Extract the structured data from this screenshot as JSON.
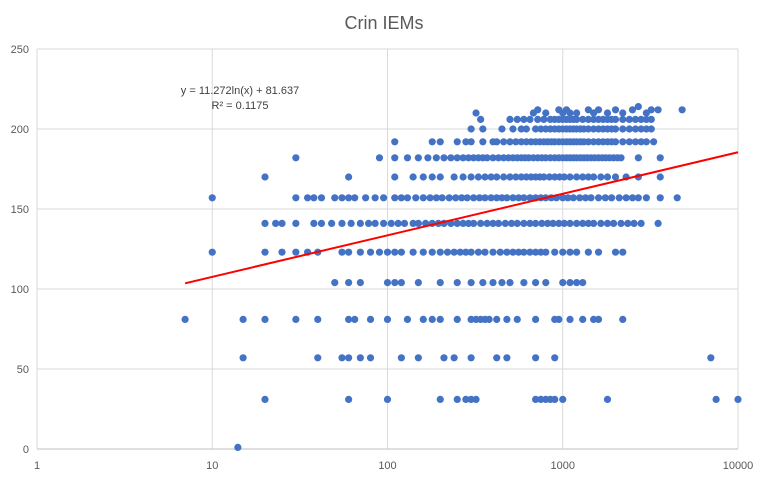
{
  "chart_data": {
    "type": "scatter",
    "title": "Crin IEMs",
    "x_scale": "log",
    "xlim": [
      1,
      10000
    ],
    "ylim": [
      0,
      250
    ],
    "x_ticks": [
      "1",
      "10",
      "100",
      "1000",
      "10000"
    ],
    "y_ticks": [
      "0",
      "50",
      "100",
      "150",
      "200",
      "250"
    ],
    "grid": true,
    "marker_color": "#4472C4",
    "trendline": {
      "equation_label": "y = 11.272ln(x) + 81.637",
      "r2_label": "R² = 0.1175",
      "a": 11.272,
      "b": 81.637,
      "x_range": [
        7,
        10000
      ],
      "color": "#FF0000"
    },
    "points": [
      [
        14,
        1
      ],
      [
        20,
        31
      ],
      [
        60,
        31
      ],
      [
        100,
        31
      ],
      [
        200,
        31
      ],
      [
        250,
        31
      ],
      [
        280,
        31
      ],
      [
        300,
        31
      ],
      [
        320,
        31
      ],
      [
        700,
        31
      ],
      [
        750,
        31
      ],
      [
        800,
        31
      ],
      [
        850,
        31
      ],
      [
        900,
        31
      ],
      [
        1000,
        31
      ],
      [
        1800,
        31
      ],
      [
        7500,
        31
      ],
      [
        10000,
        31
      ],
      [
        15,
        57
      ],
      [
        40,
        57
      ],
      [
        55,
        57
      ],
      [
        60,
        57
      ],
      [
        70,
        57
      ],
      [
        80,
        57
      ],
      [
        120,
        57
      ],
      [
        150,
        57
      ],
      [
        210,
        57
      ],
      [
        240,
        57
      ],
      [
        300,
        57
      ],
      [
        420,
        57
      ],
      [
        480,
        57
      ],
      [
        700,
        57
      ],
      [
        900,
        57
      ],
      [
        7000,
        57
      ],
      [
        7,
        81
      ],
      [
        15,
        81
      ],
      [
        20,
        81
      ],
      [
        30,
        81
      ],
      [
        40,
        81
      ],
      [
        60,
        81
      ],
      [
        65,
        81
      ],
      [
        80,
        81
      ],
      [
        100,
        81
      ],
      [
        130,
        81
      ],
      [
        160,
        81
      ],
      [
        180,
        81
      ],
      [
        200,
        81
      ],
      [
        250,
        81
      ],
      [
        300,
        81
      ],
      [
        320,
        81
      ],
      [
        340,
        81
      ],
      [
        360,
        81
      ],
      [
        380,
        81
      ],
      [
        420,
        81
      ],
      [
        480,
        81
      ],
      [
        550,
        81
      ],
      [
        700,
        81
      ],
      [
        900,
        81
      ],
      [
        950,
        81
      ],
      [
        1100,
        81
      ],
      [
        1300,
        81
      ],
      [
        1500,
        81
      ],
      [
        1600,
        81
      ],
      [
        2200,
        81
      ],
      [
        50,
        104
      ],
      [
        60,
        104
      ],
      [
        70,
        104
      ],
      [
        100,
        104
      ],
      [
        110,
        104
      ],
      [
        120,
        104
      ],
      [
        150,
        104
      ],
      [
        200,
        104
      ],
      [
        250,
        104
      ],
      [
        300,
        104
      ],
      [
        350,
        104
      ],
      [
        400,
        104
      ],
      [
        450,
        104
      ],
      [
        500,
        104
      ],
      [
        600,
        104
      ],
      [
        700,
        104
      ],
      [
        800,
        104
      ],
      [
        1000,
        104
      ],
      [
        1100,
        104
      ],
      [
        1200,
        104
      ],
      [
        1300,
        104
      ],
      [
        10,
        123
      ],
      [
        20,
        123
      ],
      [
        25,
        123
      ],
      [
        30,
        123
      ],
      [
        35,
        123
      ],
      [
        40,
        123
      ],
      [
        55,
        123
      ],
      [
        60,
        123
      ],
      [
        70,
        123
      ],
      [
        80,
        123
      ],
      [
        90,
        123
      ],
      [
        100,
        123
      ],
      [
        110,
        123
      ],
      [
        120,
        123
      ],
      [
        140,
        123
      ],
      [
        160,
        123
      ],
      [
        180,
        123
      ],
      [
        200,
        123
      ],
      [
        220,
        123
      ],
      [
        240,
        123
      ],
      [
        260,
        123
      ],
      [
        280,
        123
      ],
      [
        300,
        123
      ],
      [
        330,
        123
      ],
      [
        360,
        123
      ],
      [
        400,
        123
      ],
      [
        440,
        123
      ],
      [
        480,
        123
      ],
      [
        520,
        123
      ],
      [
        560,
        123
      ],
      [
        600,
        123
      ],
      [
        650,
        123
      ],
      [
        700,
        123
      ],
      [
        750,
        123
      ],
      [
        800,
        123
      ],
      [
        900,
        123
      ],
      [
        1000,
        123
      ],
      [
        1100,
        123
      ],
      [
        1200,
        123
      ],
      [
        1400,
        123
      ],
      [
        1600,
        123
      ],
      [
        2000,
        123
      ],
      [
        2200,
        123
      ],
      [
        20,
        141
      ],
      [
        23,
        141
      ],
      [
        25,
        141
      ],
      [
        30,
        141
      ],
      [
        38,
        141
      ],
      [
        42,
        141
      ],
      [
        48,
        141
      ],
      [
        55,
        141
      ],
      [
        62,
        141
      ],
      [
        70,
        141
      ],
      [
        78,
        141
      ],
      [
        85,
        141
      ],
      [
        95,
        141
      ],
      [
        105,
        141
      ],
      [
        115,
        141
      ],
      [
        125,
        141
      ],
      [
        140,
        141
      ],
      [
        150,
        141
      ],
      [
        165,
        141
      ],
      [
        180,
        141
      ],
      [
        195,
        141
      ],
      [
        210,
        141
      ],
      [
        230,
        141
      ],
      [
        250,
        141
      ],
      [
        270,
        141
      ],
      [
        290,
        141
      ],
      [
        310,
        141
      ],
      [
        340,
        141
      ],
      [
        370,
        141
      ],
      [
        400,
        141
      ],
      [
        430,
        141
      ],
      [
        470,
        141
      ],
      [
        510,
        141
      ],
      [
        550,
        141
      ],
      [
        600,
        141
      ],
      [
        650,
        141
      ],
      [
        700,
        141
      ],
      [
        760,
        141
      ],
      [
        820,
        141
      ],
      [
        880,
        141
      ],
      [
        950,
        141
      ],
      [
        1020,
        141
      ],
      [
        1100,
        141
      ],
      [
        1200,
        141
      ],
      [
        1300,
        141
      ],
      [
        1400,
        141
      ],
      [
        1500,
        141
      ],
      [
        1650,
        141
      ],
      [
        1800,
        141
      ],
      [
        1950,
        141
      ],
      [
        2150,
        141
      ],
      [
        2350,
        141
      ],
      [
        2550,
        141
      ],
      [
        2800,
        141
      ],
      [
        3500,
        141
      ],
      [
        10,
        157
      ],
      [
        30,
        157
      ],
      [
        35,
        157
      ],
      [
        38,
        157
      ],
      [
        42,
        157
      ],
      [
        50,
        157
      ],
      [
        55,
        157
      ],
      [
        60,
        157
      ],
      [
        65,
        157
      ],
      [
        75,
        157
      ],
      [
        85,
        157
      ],
      [
        95,
        157
      ],
      [
        110,
        157
      ],
      [
        120,
        157
      ],
      [
        130,
        157
      ],
      [
        145,
        157
      ],
      [
        160,
        157
      ],
      [
        175,
        157
      ],
      [
        190,
        157
      ],
      [
        205,
        157
      ],
      [
        225,
        157
      ],
      [
        245,
        157
      ],
      [
        265,
        157
      ],
      [
        285,
        157
      ],
      [
        310,
        157
      ],
      [
        335,
        157
      ],
      [
        360,
        157
      ],
      [
        390,
        157
      ],
      [
        420,
        157
      ],
      [
        450,
        157
      ],
      [
        480,
        157
      ],
      [
        520,
        157
      ],
      [
        560,
        157
      ],
      [
        600,
        157
      ],
      [
        650,
        157
      ],
      [
        700,
        157
      ],
      [
        750,
        157
      ],
      [
        800,
        157
      ],
      [
        860,
        157
      ],
      [
        920,
        157
      ],
      [
        1000,
        157
      ],
      [
        1070,
        157
      ],
      [
        1150,
        157
      ],
      [
        1250,
        157
      ],
      [
        1350,
        157
      ],
      [
        1450,
        157
      ],
      [
        1600,
        157
      ],
      [
        1750,
        157
      ],
      [
        1900,
        157
      ],
      [
        2100,
        157
      ],
      [
        2300,
        157
      ],
      [
        2500,
        157
      ],
      [
        2700,
        157
      ],
      [
        3000,
        157
      ],
      [
        3600,
        157
      ],
      [
        4500,
        157
      ],
      [
        20,
        170
      ],
      [
        60,
        170
      ],
      [
        110,
        170
      ],
      [
        140,
        170
      ],
      [
        160,
        170
      ],
      [
        180,
        170
      ],
      [
        200,
        170
      ],
      [
        240,
        170
      ],
      [
        270,
        170
      ],
      [
        300,
        170
      ],
      [
        330,
        170
      ],
      [
        360,
        170
      ],
      [
        390,
        170
      ],
      [
        420,
        170
      ],
      [
        460,
        170
      ],
      [
        500,
        170
      ],
      [
        540,
        170
      ],
      [
        580,
        170
      ],
      [
        620,
        170
      ],
      [
        660,
        170
      ],
      [
        700,
        170
      ],
      [
        740,
        170
      ],
      [
        780,
        170
      ],
      [
        840,
        170
      ],
      [
        900,
        170
      ],
      [
        960,
        170
      ],
      [
        1020,
        170
      ],
      [
        1100,
        170
      ],
      [
        1200,
        170
      ],
      [
        1300,
        170
      ],
      [
        1400,
        170
      ],
      [
        1500,
        170
      ],
      [
        1650,
        170
      ],
      [
        1800,
        170
      ],
      [
        2000,
        170
      ],
      [
        2300,
        170
      ],
      [
        2700,
        170
      ],
      [
        3600,
        170
      ],
      [
        30,
        182
      ],
      [
        90,
        182
      ],
      [
        110,
        182
      ],
      [
        130,
        182
      ],
      [
        150,
        182
      ],
      [
        170,
        182
      ],
      [
        190,
        182
      ],
      [
        210,
        182
      ],
      [
        230,
        182
      ],
      [
        250,
        182
      ],
      [
        270,
        182
      ],
      [
        290,
        182
      ],
      [
        310,
        182
      ],
      [
        330,
        182
      ],
      [
        350,
        182
      ],
      [
        370,
        182
      ],
      [
        400,
        182
      ],
      [
        430,
        182
      ],
      [
        460,
        182
      ],
      [
        490,
        182
      ],
      [
        520,
        182
      ],
      [
        550,
        182
      ],
      [
        580,
        182
      ],
      [
        610,
        182
      ],
      [
        640,
        182
      ],
      [
        680,
        182
      ],
      [
        720,
        182
      ],
      [
        760,
        182
      ],
      [
        800,
        182
      ],
      [
        850,
        182
      ],
      [
        900,
        182
      ],
      [
        950,
        182
      ],
      [
        1000,
        182
      ],
      [
        1050,
        182
      ],
      [
        1100,
        182
      ],
      [
        1150,
        182
      ],
      [
        1200,
        182
      ],
      [
        1260,
        182
      ],
      [
        1320,
        182
      ],
      [
        1380,
        182
      ],
      [
        1450,
        182
      ],
      [
        1520,
        182
      ],
      [
        1600,
        182
      ],
      [
        1680,
        182
      ],
      [
        1760,
        182
      ],
      [
        1850,
        182
      ],
      [
        1950,
        182
      ],
      [
        2050,
        182
      ],
      [
        2150,
        182
      ],
      [
        2700,
        182
      ],
      [
        3600,
        182
      ],
      [
        110,
        192
      ],
      [
        180,
        192
      ],
      [
        200,
        192
      ],
      [
        250,
        192
      ],
      [
        280,
        192
      ],
      [
        300,
        192
      ],
      [
        350,
        192
      ],
      [
        400,
        192
      ],
      [
        420,
        192
      ],
      [
        460,
        192
      ],
      [
        500,
        192
      ],
      [
        540,
        192
      ],
      [
        580,
        192
      ],
      [
        620,
        192
      ],
      [
        660,
        192
      ],
      [
        700,
        192
      ],
      [
        740,
        192
      ],
      [
        780,
        192
      ],
      [
        820,
        192
      ],
      [
        860,
        192
      ],
      [
        900,
        192
      ],
      [
        950,
        192
      ],
      [
        1000,
        192
      ],
      [
        1050,
        192
      ],
      [
        1100,
        192
      ],
      [
        1150,
        192
      ],
      [
        1200,
        192
      ],
      [
        1260,
        192
      ],
      [
        1320,
        192
      ],
      [
        1400,
        192
      ],
      [
        1500,
        192
      ],
      [
        1600,
        192
      ],
      [
        1700,
        192
      ],
      [
        1800,
        192
      ],
      [
        1900,
        192
      ],
      [
        2000,
        192
      ],
      [
        2200,
        192
      ],
      [
        2400,
        192
      ],
      [
        2600,
        192
      ],
      [
        2800,
        192
      ],
      [
        3000,
        192
      ],
      [
        3300,
        192
      ],
      [
        300,
        200
      ],
      [
        350,
        200
      ],
      [
        450,
        200
      ],
      [
        520,
        200
      ],
      [
        580,
        200
      ],
      [
        620,
        200
      ],
      [
        700,
        200
      ],
      [
        750,
        200
      ],
      [
        800,
        200
      ],
      [
        850,
        200
      ],
      [
        900,
        200
      ],
      [
        950,
        200
      ],
      [
        1000,
        200
      ],
      [
        1050,
        200
      ],
      [
        1100,
        200
      ],
      [
        1150,
        200
      ],
      [
        1200,
        200
      ],
      [
        1260,
        200
      ],
      [
        1320,
        200
      ],
      [
        1400,
        200
      ],
      [
        1500,
        200
      ],
      [
        1600,
        200
      ],
      [
        1700,
        200
      ],
      [
        1800,
        200
      ],
      [
        1900,
        200
      ],
      [
        2000,
        200
      ],
      [
        2200,
        200
      ],
      [
        2400,
        200
      ],
      [
        2600,
        200
      ],
      [
        2800,
        200
      ],
      [
        3000,
        200
      ],
      [
        3200,
        200
      ],
      [
        340,
        206
      ],
      [
        500,
        206
      ],
      [
        550,
        206
      ],
      [
        600,
        206
      ],
      [
        650,
        206
      ],
      [
        720,
        206
      ],
      [
        780,
        206
      ],
      [
        850,
        206
      ],
      [
        900,
        206
      ],
      [
        950,
        206
      ],
      [
        1000,
        206
      ],
      [
        1050,
        206
      ],
      [
        1100,
        206
      ],
      [
        1150,
        206
      ],
      [
        1200,
        206
      ],
      [
        1300,
        206
      ],
      [
        1400,
        206
      ],
      [
        1500,
        206
      ],
      [
        1600,
        206
      ],
      [
        1700,
        206
      ],
      [
        1800,
        206
      ],
      [
        1900,
        206
      ],
      [
        2000,
        206
      ],
      [
        2200,
        206
      ],
      [
        2400,
        206
      ],
      [
        2600,
        206
      ],
      [
        2800,
        206
      ],
      [
        3000,
        206
      ],
      [
        3200,
        206
      ],
      [
        320,
        210
      ],
      [
        680,
        210
      ],
      [
        720,
        212
      ],
      [
        800,
        210
      ],
      [
        950,
        212
      ],
      [
        1000,
        210
      ],
      [
        1050,
        212
      ],
      [
        1100,
        210
      ],
      [
        1200,
        210
      ],
      [
        1400,
        212
      ],
      [
        1500,
        210
      ],
      [
        1600,
        212
      ],
      [
        1800,
        210
      ],
      [
        2000,
        212
      ],
      [
        2200,
        210
      ],
      [
        2500,
        212
      ],
      [
        2700,
        214
      ],
      [
        3000,
        210
      ],
      [
        3200,
        212
      ],
      [
        3500,
        212
      ],
      [
        4800,
        212
      ]
    ]
  }
}
